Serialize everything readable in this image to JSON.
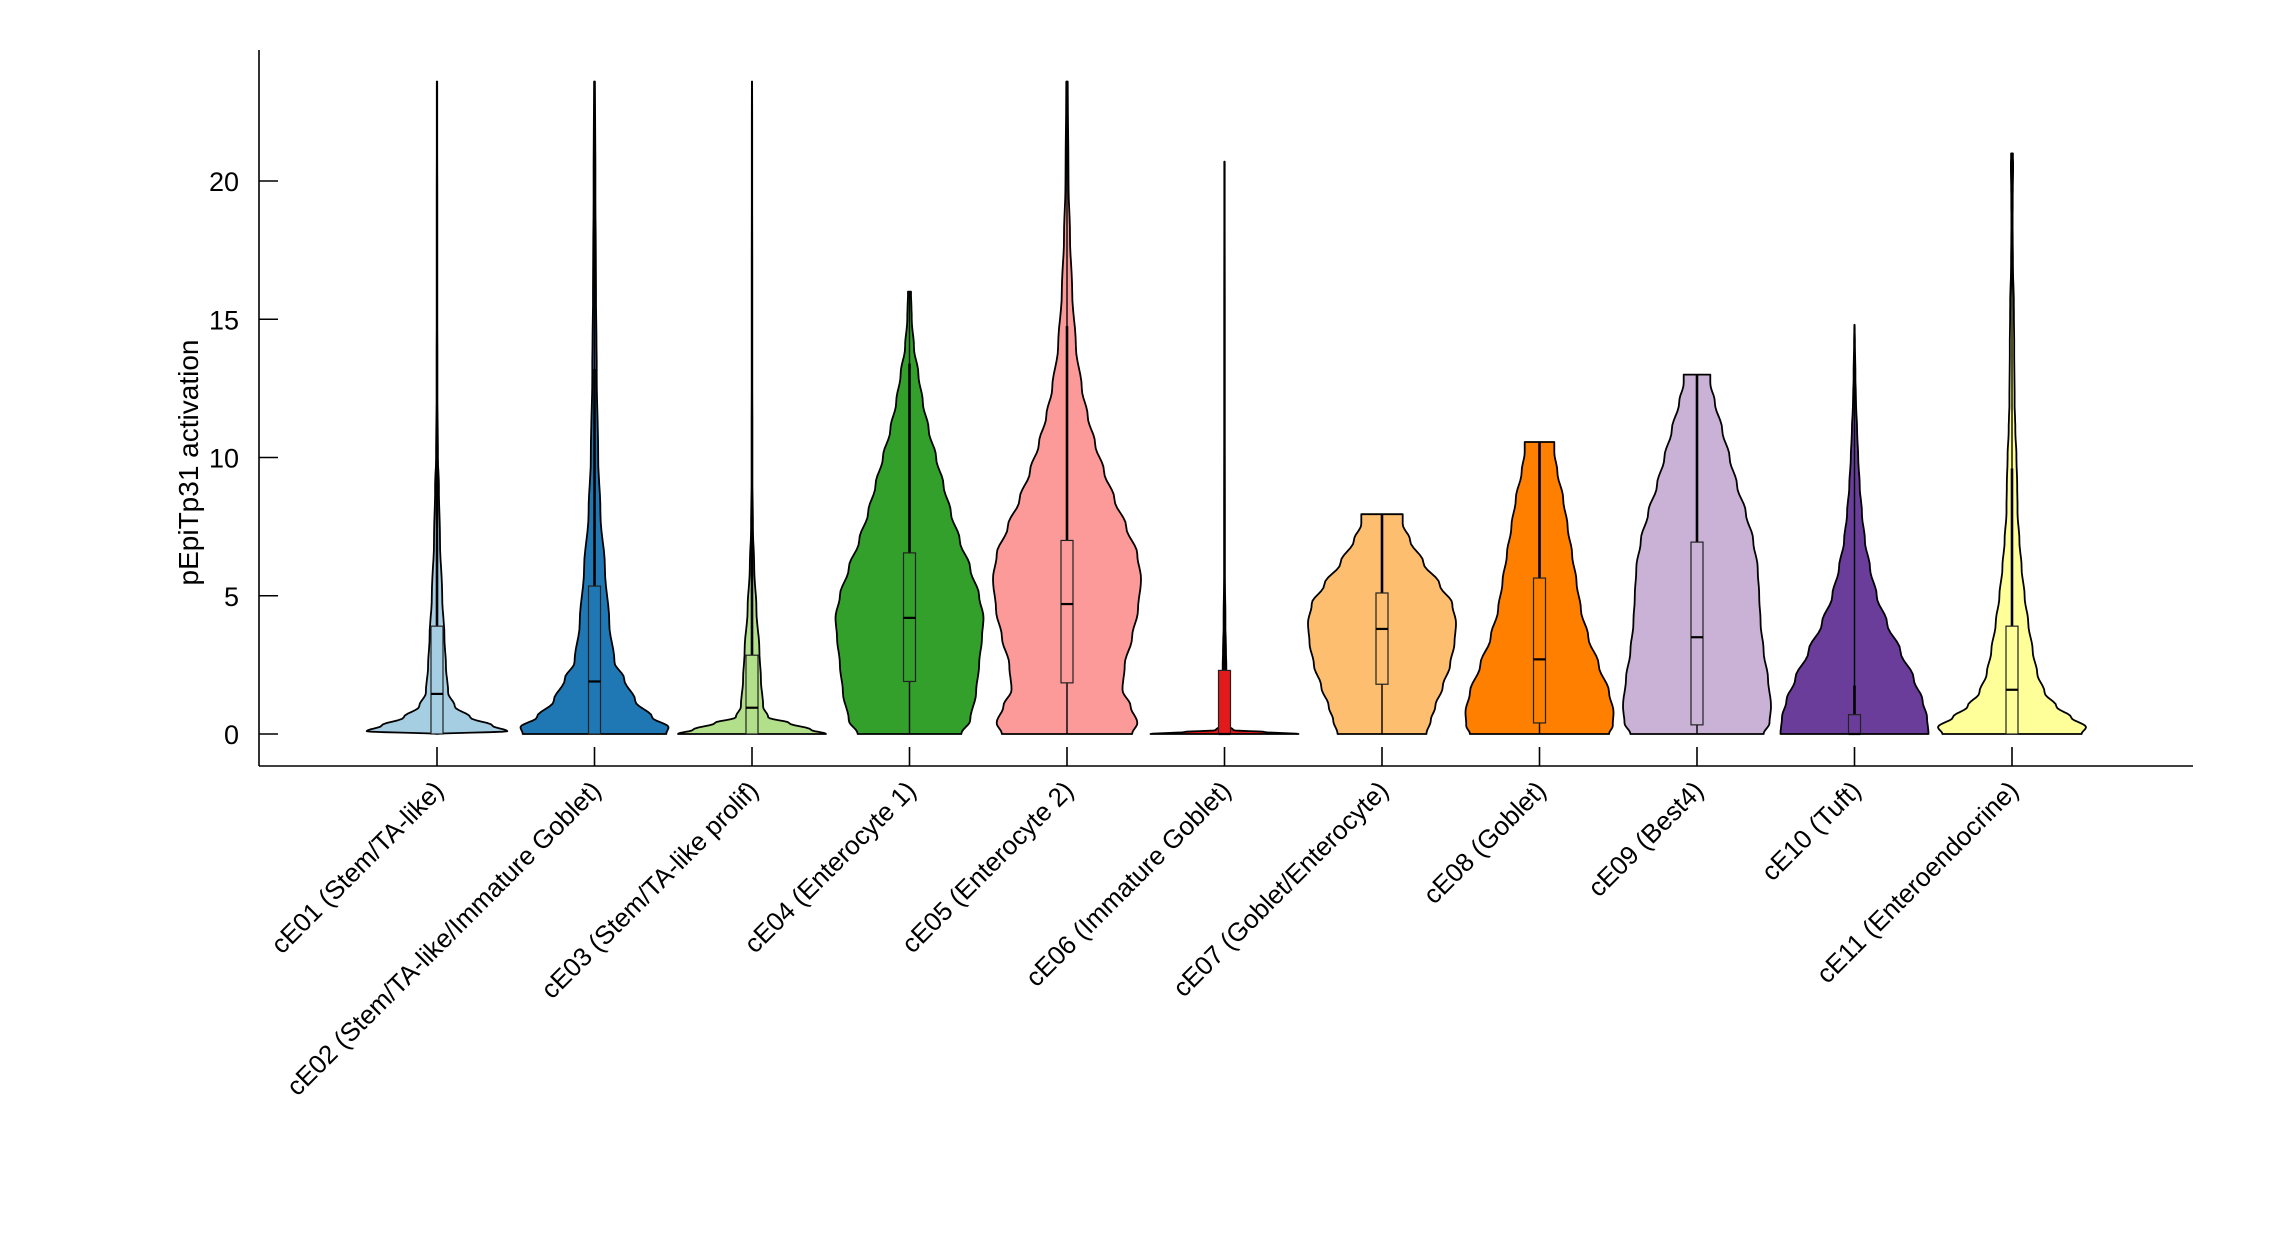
{
  "chart_data": {
    "type": "violin",
    "title": "",
    "xlabel": "",
    "ylabel": "pEpiTp31 activation",
    "ylim": [
      -1.7,
      24.7
    ],
    "yticks": [
      0,
      5,
      10,
      15,
      20
    ],
    "grid": false,
    "legend": "none",
    "categories": [
      {
        "label": "cE01 (Stem/TA-like)",
        "color": "#a6cee3",
        "max": 23.6,
        "whisker_high": 9.8,
        "q3": 3.9,
        "median": 1.45,
        "q1": 0.0,
        "whisker_low": 0.0,
        "density": [
          [
            0,
            0.0
          ],
          [
            0.1,
            0.95
          ],
          [
            0.3,
            0.75
          ],
          [
            0.6,
            0.45
          ],
          [
            1.0,
            0.24
          ],
          [
            1.5,
            0.15
          ],
          [
            2.5,
            0.12
          ],
          [
            3.5,
            0.1
          ],
          [
            5,
            0.07
          ],
          [
            7,
            0.04
          ],
          [
            9,
            0.025
          ],
          [
            10,
            0.012
          ],
          [
            12,
            0.006
          ],
          [
            16,
            0.004
          ],
          [
            23.6,
            0.003
          ]
        ]
      },
      {
        "label": "cE02 (Stem/TA-like/Immature Goblet)",
        "color": "#1f78b4",
        "max": 23.6,
        "whisker_high": 13.2,
        "q3": 5.35,
        "median": 1.9,
        "q1": 0.0,
        "whisker_low": 0.0,
        "density": [
          [
            0,
            0.97
          ],
          [
            0.25,
            1.0
          ],
          [
            0.6,
            0.78
          ],
          [
            1.2,
            0.55
          ],
          [
            2,
            0.4
          ],
          [
            2.6,
            0.27
          ],
          [
            4,
            0.2
          ],
          [
            6,
            0.14
          ],
          [
            8,
            0.08
          ],
          [
            10,
            0.05
          ],
          [
            13,
            0.03
          ],
          [
            16,
            0.02
          ],
          [
            20,
            0.012
          ],
          [
            23.6,
            0.006
          ]
        ]
      },
      {
        "label": "cE03 (Stem/TA-like prolif)",
        "color": "#b2df8a",
        "max": 23.6,
        "whisker_high": 7.1,
        "q3": 2.85,
        "median": 0.95,
        "q1": 0.0,
        "whisker_low": 0.0,
        "density": [
          [
            0,
            1.0
          ],
          [
            0.15,
            0.8
          ],
          [
            0.4,
            0.5
          ],
          [
            0.6,
            0.22
          ],
          [
            1,
            0.15
          ],
          [
            2,
            0.12
          ],
          [
            3,
            0.1
          ],
          [
            4.5,
            0.06
          ],
          [
            6,
            0.03
          ],
          [
            7.5,
            0.012
          ],
          [
            9,
            0.006
          ],
          [
            14,
            0.004
          ],
          [
            23.6,
            0.002
          ]
        ]
      },
      {
        "label": "cE04 (Enterocyte 1)",
        "color": "#33a02c",
        "max": 16.0,
        "whisker_high": 13.4,
        "q3": 6.55,
        "median": 4.2,
        "q1": 1.9,
        "whisker_low": 0.0,
        "density": [
          [
            0,
            0.7
          ],
          [
            0.5,
            0.82
          ],
          [
            1.5,
            0.9
          ],
          [
            2.5,
            0.94
          ],
          [
            3.5,
            0.98
          ],
          [
            4.2,
            1.0
          ],
          [
            5,
            0.94
          ],
          [
            6,
            0.82
          ],
          [
            7,
            0.68
          ],
          [
            8,
            0.56
          ],
          [
            9,
            0.46
          ],
          [
            10,
            0.36
          ],
          [
            11,
            0.26
          ],
          [
            12,
            0.18
          ],
          [
            13,
            0.12
          ],
          [
            14,
            0.06
          ],
          [
            15,
            0.03
          ],
          [
            16,
            0.02
          ]
        ]
      },
      {
        "label": "cE05 (Enterocyte 2)",
        "color": "#fb9a99",
        "max": 23.6,
        "whisker_high": 14.75,
        "q3": 7.0,
        "median": 4.7,
        "q1": 1.85,
        "whisker_low": 0.0,
        "density": [
          [
            0,
            0.88
          ],
          [
            0.4,
            0.95
          ],
          [
            1,
            0.86
          ],
          [
            1.6,
            0.75
          ],
          [
            2.5,
            0.78
          ],
          [
            3.5,
            0.88
          ],
          [
            4.5,
            0.96
          ],
          [
            5.6,
            1.0
          ],
          [
            6.5,
            0.95
          ],
          [
            7.5,
            0.8
          ],
          [
            8.5,
            0.64
          ],
          [
            9.5,
            0.5
          ],
          [
            10.5,
            0.38
          ],
          [
            11.5,
            0.28
          ],
          [
            12.5,
            0.2
          ],
          [
            14,
            0.12
          ],
          [
            16,
            0.07
          ],
          [
            18,
            0.04
          ],
          [
            20,
            0.02
          ],
          [
            23.6,
            0.01
          ]
        ]
      },
      {
        "label": "cE06 (Immature Goblet)",
        "color": "#e31a1c",
        "max": 20.7,
        "whisker_high": 4.0,
        "q3": 2.3,
        "median": 0.0,
        "q1": 0.0,
        "whisker_low": 0.0,
        "density": [
          [
            0,
            1.0
          ],
          [
            0.07,
            0.55
          ],
          [
            0.14,
            0.12
          ],
          [
            0.3,
            0.05
          ],
          [
            1,
            0.03
          ],
          [
            2.3,
            0.025
          ],
          [
            3,
            0.02
          ],
          [
            4,
            0.012
          ],
          [
            6,
            0.005
          ],
          [
            20.7,
            0.003
          ]
        ]
      },
      {
        "label": "cE07 (Goblet/Enterocyte)",
        "color": "#fdbf6f",
        "max": 7.95,
        "whisker_high": 7.95,
        "q3": 5.1,
        "median": 3.8,
        "q1": 1.8,
        "whisker_low": 0.0,
        "density": [
          [
            0,
            0.6
          ],
          [
            0.5,
            0.66
          ],
          [
            1,
            0.72
          ],
          [
            1.7,
            0.82
          ],
          [
            2.5,
            0.92
          ],
          [
            3.3,
            0.98
          ],
          [
            4,
            1.0
          ],
          [
            4.7,
            0.95
          ],
          [
            5.4,
            0.78
          ],
          [
            6.2,
            0.56
          ],
          [
            7,
            0.38
          ],
          [
            7.6,
            0.28
          ],
          [
            7.95,
            0.28
          ]
        ]
      },
      {
        "label": "cE08 (Goblet)",
        "color": "#ff7f00",
        "max": 10.56,
        "whisker_high": 10.56,
        "q3": 5.64,
        "median": 2.7,
        "q1": 0.4,
        "whisker_low": 0.0,
        "density": [
          [
            0,
            0.94
          ],
          [
            0.3,
            0.99
          ],
          [
            0.8,
            1.0
          ],
          [
            1.5,
            0.94
          ],
          [
            2.5,
            0.8
          ],
          [
            3.5,
            0.66
          ],
          [
            4.5,
            0.56
          ],
          [
            5.5,
            0.5
          ],
          [
            6.5,
            0.44
          ],
          [
            7.5,
            0.38
          ],
          [
            8.5,
            0.32
          ],
          [
            9.5,
            0.24
          ],
          [
            10.2,
            0.2
          ],
          [
            10.56,
            0.2
          ]
        ]
      },
      {
        "label": "cE09 (Best4)",
        "color": "#cab2d6",
        "max": 13.0,
        "whisker_high": 13.0,
        "q3": 6.94,
        "median": 3.5,
        "q1": 0.33,
        "whisker_low": 0.0,
        "density": [
          [
            0,
            0.9
          ],
          [
            0.4,
            0.98
          ],
          [
            1,
            1.0
          ],
          [
            2,
            0.96
          ],
          [
            3,
            0.9
          ],
          [
            4,
            0.86
          ],
          [
            5,
            0.84
          ],
          [
            6,
            0.82
          ],
          [
            7,
            0.76
          ],
          [
            8,
            0.66
          ],
          [
            9,
            0.54
          ],
          [
            10,
            0.44
          ],
          [
            11,
            0.34
          ],
          [
            12,
            0.24
          ],
          [
            12.7,
            0.18
          ],
          [
            13.0,
            0.18
          ]
        ]
      },
      {
        "label": "cE10 (Tuft)",
        "color": "#6a3d9a",
        "max": 14.8,
        "whisker_high": 1.75,
        "q3": 0.7,
        "median": 0.0,
        "q1": 0.0,
        "whisker_low": 0.0,
        "density": [
          [
            0,
            1.0
          ],
          [
            0.6,
            0.98
          ],
          [
            1.2,
            0.92
          ],
          [
            2,
            0.8
          ],
          [
            3,
            0.62
          ],
          [
            4,
            0.44
          ],
          [
            5,
            0.3
          ],
          [
            6,
            0.21
          ],
          [
            7,
            0.14
          ],
          [
            8,
            0.1
          ],
          [
            9,
            0.07
          ],
          [
            10,
            0.05
          ],
          [
            11,
            0.035
          ],
          [
            12,
            0.02
          ],
          [
            13,
            0.012
          ],
          [
            14,
            0.006
          ],
          [
            14.8,
            0.002
          ]
        ]
      },
      {
        "label": "cE11 (Enteroendocrine)",
        "color": "#ffff99",
        "max": 21.0,
        "whisker_high": 9.6,
        "q3": 3.9,
        "median": 1.6,
        "q1": 0.0,
        "whisker_low": 0.0,
        "density": [
          [
            0,
            0.94
          ],
          [
            0.25,
            1.0
          ],
          [
            0.6,
            0.8
          ],
          [
            1,
            0.6
          ],
          [
            1.5,
            0.44
          ],
          [
            2.2,
            0.34
          ],
          [
            3,
            0.28
          ],
          [
            4,
            0.22
          ],
          [
            5,
            0.17
          ],
          [
            6,
            0.13
          ],
          [
            7,
            0.1
          ],
          [
            8,
            0.075
          ],
          [
            9,
            0.07
          ],
          [
            10,
            0.06
          ],
          [
            11,
            0.045
          ],
          [
            12,
            0.035
          ],
          [
            14,
            0.03
          ],
          [
            15.5,
            0.025
          ],
          [
            17,
            0.012
          ],
          [
            18.5,
            0.008
          ],
          [
            19.5,
            0.01
          ],
          [
            20.5,
            0.015
          ],
          [
            21.0,
            0.012
          ]
        ]
      }
    ]
  }
}
